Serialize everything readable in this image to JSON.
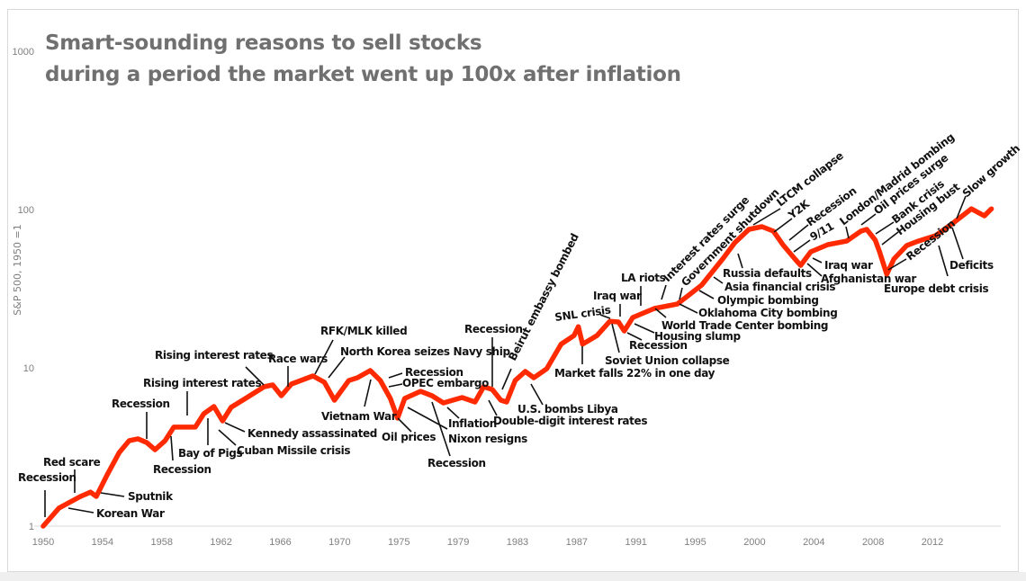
{
  "chart_data": {
    "type": "line",
    "title": [
      "Smart-sounding reasons to sell stocks",
      "during a period the market went up 100x after inflation"
    ],
    "ylabel": "S&P 500, 1950 =1",
    "xlabel": "",
    "y_scale": "log",
    "ylim": [
      1,
      1000
    ],
    "y_ticks": [
      "1",
      "10",
      "100",
      "1000"
    ],
    "x_ticks": [
      "1950",
      "1954",
      "1958",
      "1962",
      "1966",
      "1970",
      "1975",
      "1979",
      "1983",
      "1987",
      "1991",
      "1995",
      "2000",
      "2004",
      "2008",
      "2012"
    ],
    "grid": false,
    "line_color": "#ff2a00",
    "series": [
      {
        "x": [
          1950.0,
          1951.1,
          1952.6,
          1953.3,
          1953.7,
          1954.5,
          1955.3,
          1956.0,
          1956.6,
          1957.2,
          1957.8,
          1958.5,
          1959.1,
          1960.6,
          1961.2,
          1961.9,
          1962.5,
          1963.1,
          1964.1,
          1965.4,
          1966.0,
          1966.6,
          1967.3,
          1968.8,
          1969.6,
          1970.3,
          1971.3,
          1971.9,
          1972.8,
          1973.5,
          1974.2,
          1974.7,
          1975.2,
          1976.3,
          1977.1,
          1977.9,
          1979.2,
          1980.1,
          1980.7,
          1981.3,
          1981.9,
          1982.3,
          1982.9,
          1983.6,
          1984.2,
          1985.1,
          1986.1,
          1987.0,
          1987.3,
          1987.6,
          1988.6,
          1989.5,
          1990.1,
          1990.5,
          1991.1,
          1992.6,
          1994.2,
          1995.9,
          1997.4,
          1998.2,
          1999.2,
          2000.1,
          2000.9,
          2001.6,
          2002.4,
          2002.8,
          2003.5,
          2004.7,
          2006.0,
          2007.0,
          2007.4,
          2008.0,
          2008.3,
          2008.8,
          2009.3,
          2010.2,
          2011.0,
          2012.2,
          2013.5,
          2014.7,
          2015.6,
          2016.1
        ],
        "y": [
          1.0,
          1.3,
          1.54,
          1.64,
          1.54,
          2.14,
          2.92,
          3.47,
          3.56,
          3.38,
          3.04,
          3.47,
          4.22,
          4.22,
          5.13,
          5.7,
          4.62,
          5.63,
          6.41,
          7.6,
          7.8,
          6.67,
          7.9,
          8.89,
          8.11,
          6.24,
          8.32,
          8.66,
          9.61,
          8.32,
          6.41,
          4.81,
          6.41,
          7.11,
          6.67,
          6.0,
          6.49,
          6.08,
          7.6,
          7.31,
          6.24,
          6.08,
          8.32,
          9.49,
          8.66,
          9.87,
          14.1,
          16.0,
          18.2,
          14.1,
          16.0,
          19.7,
          19.5,
          17.1,
          20.8,
          23.7,
          25.3,
          33.3,
          49.3,
          61.6,
          75.0,
          78.0,
          73.1,
          59.3,
          48.7,
          44.4,
          54.1,
          60.0,
          63.2,
          73.1,
          75.0,
          64.1,
          54.1,
          39.0,
          48.7,
          59.3,
          63.2,
          68.4,
          83.2,
          101,
          91.2,
          101
        ]
      }
    ],
    "annotations": [
      "Recession",
      "Red scare",
      "Sputnik",
      "Korean War",
      "Recession",
      "Recession",
      "Rising interest rates",
      "Bay of Pigs",
      "Cuban Missile crisis",
      "Kennedy assassinated",
      "Rising interest rates",
      "Race wars",
      "RFK/MLK killed",
      "North Korea seizes Navy ship",
      "Vietnam War",
      "Recession",
      "OPEC embargo",
      "Oil prices",
      "Inflation",
      "Nixon resigns",
      "Recession",
      "Double-digit interest rates",
      "Recession",
      "Beirut embassy bombed",
      "U.S. bombs Libya",
      "Market falls 22% in one day",
      "SNL crisis",
      "Soviet Union collapse",
      "Recession",
      "Iraq war",
      "Housing slump",
      "World Trade Center bombing",
      "Oklahoma City bombing",
      "Olympic bombing",
      "Asia financial crisis",
      "Russia defaults",
      "LA riots",
      "Interest rates surge",
      "Government shutdown",
      "LTCM collapse",
      "Y2K",
      "Recession",
      "9/11",
      "London/Madrid bombing",
      "Oil prices surge",
      "Bank crisis",
      "Housing bust",
      "Recession",
      "Slow growth",
      "Deficits",
      "Europe debt crisis",
      "Iraq war",
      "Afghanistan war"
    ]
  }
}
